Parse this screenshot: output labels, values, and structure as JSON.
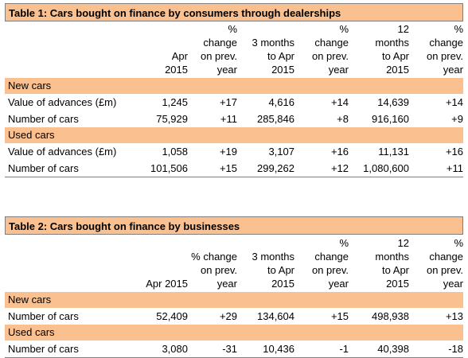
{
  "table1": {
    "title": "Table 1: Cars bought on finance by consumers through dealerships",
    "headers": [
      [
        "Apr",
        "2015"
      ],
      [
        "%",
        "change",
        "on prev.",
        "year"
      ],
      [
        "3 months",
        "to Apr",
        "2015"
      ],
      [
        "%",
        "change",
        "on prev.",
        "year"
      ],
      [
        "12",
        "months",
        "to Apr",
        "2015"
      ],
      [
        "%",
        "change",
        "on prev.",
        "year"
      ]
    ],
    "sections": [
      {
        "name": "New cars",
        "rows": [
          {
            "label": "Value of advances (£m)",
            "cells": [
              "1,245",
              "+17",
              "4,616",
              "+14",
              "14,639",
              "+14"
            ]
          },
          {
            "label": "Number of cars",
            "cells": [
              "75,929",
              "+11",
              "285,846",
              "+8",
              "916,160",
              "+9"
            ]
          }
        ]
      },
      {
        "name": "Used cars",
        "rows": [
          {
            "label": "Value of advances (£m)",
            "cells": [
              "1,058",
              "+19",
              "3,107",
              "+16",
              "11,131",
              "+16"
            ]
          },
          {
            "label": "Number of cars",
            "cells": [
              "101,506",
              "+15",
              "299,262",
              "+12",
              "1,080,600",
              "+11"
            ]
          }
        ]
      }
    ]
  },
  "table2": {
    "title": "Table 2: Cars bought on finance by businesses",
    "headers": [
      [
        "Apr 2015"
      ],
      [
        "% change",
        "on prev.",
        "year"
      ],
      [
        "3 months",
        "to Apr",
        "2015"
      ],
      [
        "%",
        "change",
        "on prev.",
        "year"
      ],
      [
        "12",
        "months",
        "to Apr",
        "2015"
      ],
      [
        "%",
        "change",
        "on prev.",
        "year"
      ]
    ],
    "sections": [
      {
        "name": "New cars",
        "rows": [
          {
            "label": "Number of cars",
            "cells": [
              "52,409",
              "+29",
              "134,604",
              "+15",
              "498,938",
              "+13"
            ]
          }
        ]
      },
      {
        "name": "Used cars",
        "rows": [
          {
            "label": "Number of cars",
            "cells": [
              "3,080",
              "-31",
              "10,436",
              "-1",
              "40,398",
              "-18"
            ]
          }
        ]
      }
    ]
  }
}
